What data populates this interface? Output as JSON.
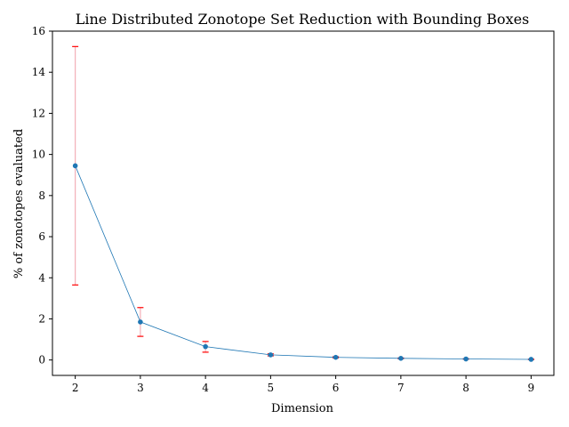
{
  "chart_data": {
    "type": "line",
    "title": "Line Distributed Zonotope Set Reduction with Bounding Boxes",
    "xlabel": "Dimension",
    "ylabel": "% of zonotopes evaluated",
    "x": [
      2,
      3,
      4,
      5,
      6,
      7,
      8,
      9
    ],
    "xlim": [
      1.65,
      9.35
    ],
    "ylim": [
      -0.75,
      16
    ],
    "yticks": [
      0,
      2,
      4,
      6,
      8,
      10,
      12,
      14,
      16
    ],
    "grid": false,
    "series": [
      {
        "values": [
          9.45,
          1.85,
          0.65,
          0.25,
          0.13,
          0.08,
          0.05,
          0.03
        ],
        "err_low": [
          3.65,
          1.15,
          0.38,
          0.2,
          0.1,
          0.06,
          0.04,
          0.02
        ],
        "err_high": [
          15.25,
          2.55,
          0.9,
          0.3,
          0.16,
          0.1,
          0.06,
          0.04
        ],
        "color": "#1f77b4",
        "error_color": "#ff0000",
        "error_line_color": "#f4b0b8"
      }
    ]
  }
}
